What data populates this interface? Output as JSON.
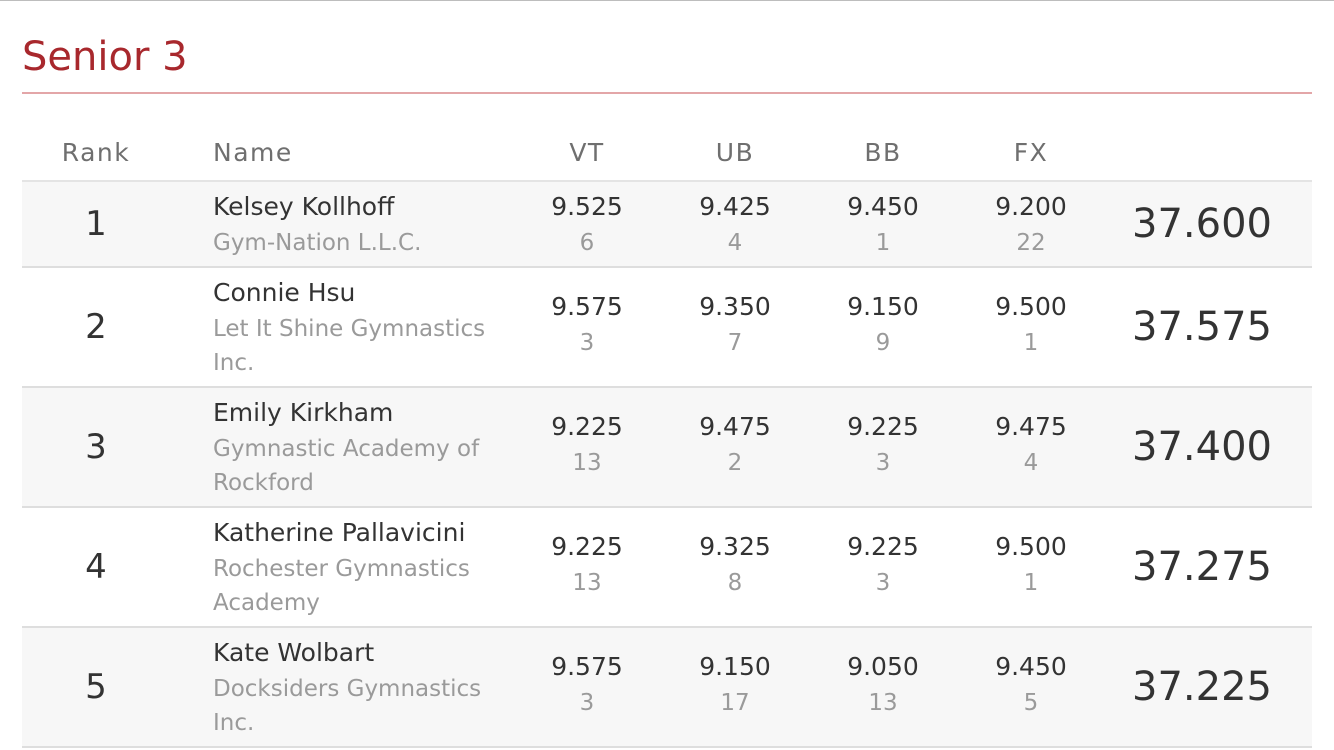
{
  "title": "Senior 3",
  "headers": {
    "rank": "Rank",
    "name": "Name",
    "vt": "VT",
    "ub": "UB",
    "bb": "BB",
    "fx": "FX"
  },
  "rows": [
    {
      "rank": "1",
      "name": "Kelsey Kollhoff",
      "club": "Gym-Nation L.L.C.",
      "vt": {
        "score": "9.525",
        "place": "6"
      },
      "ub": {
        "score": "9.425",
        "place": "4"
      },
      "bb": {
        "score": "9.450",
        "place": "1"
      },
      "fx": {
        "score": "9.200",
        "place": "22"
      },
      "total": "37.600"
    },
    {
      "rank": "2",
      "name": "Connie Hsu",
      "club": "Let It Shine Gymnastics Inc.",
      "vt": {
        "score": "9.575",
        "place": "3"
      },
      "ub": {
        "score": "9.350",
        "place": "7"
      },
      "bb": {
        "score": "9.150",
        "place": "9"
      },
      "fx": {
        "score": "9.500",
        "place": "1"
      },
      "total": "37.575"
    },
    {
      "rank": "3",
      "name": "Emily Kirkham",
      "club": "Gymnastic Academy of Rockford",
      "vt": {
        "score": "9.225",
        "place": "13"
      },
      "ub": {
        "score": "9.475",
        "place": "2"
      },
      "bb": {
        "score": "9.225",
        "place": "3"
      },
      "fx": {
        "score": "9.475",
        "place": "4"
      },
      "total": "37.400"
    },
    {
      "rank": "4",
      "name": "Katherine Pallavicini",
      "club": "Rochester Gymnastics Academy",
      "vt": {
        "score": "9.225",
        "place": "13"
      },
      "ub": {
        "score": "9.325",
        "place": "8"
      },
      "bb": {
        "score": "9.225",
        "place": "3"
      },
      "fx": {
        "score": "9.500",
        "place": "1"
      },
      "total": "37.275"
    },
    {
      "rank": "5",
      "name": "Kate Wolbart",
      "club": "Docksiders Gymnastics Inc.",
      "vt": {
        "score": "9.575",
        "place": "3"
      },
      "ub": {
        "score": "9.150",
        "place": "17"
      },
      "bb": {
        "score": "9.050",
        "place": "13"
      },
      "fx": {
        "score": "9.450",
        "place": "5"
      },
      "total": "37.225"
    }
  ]
}
